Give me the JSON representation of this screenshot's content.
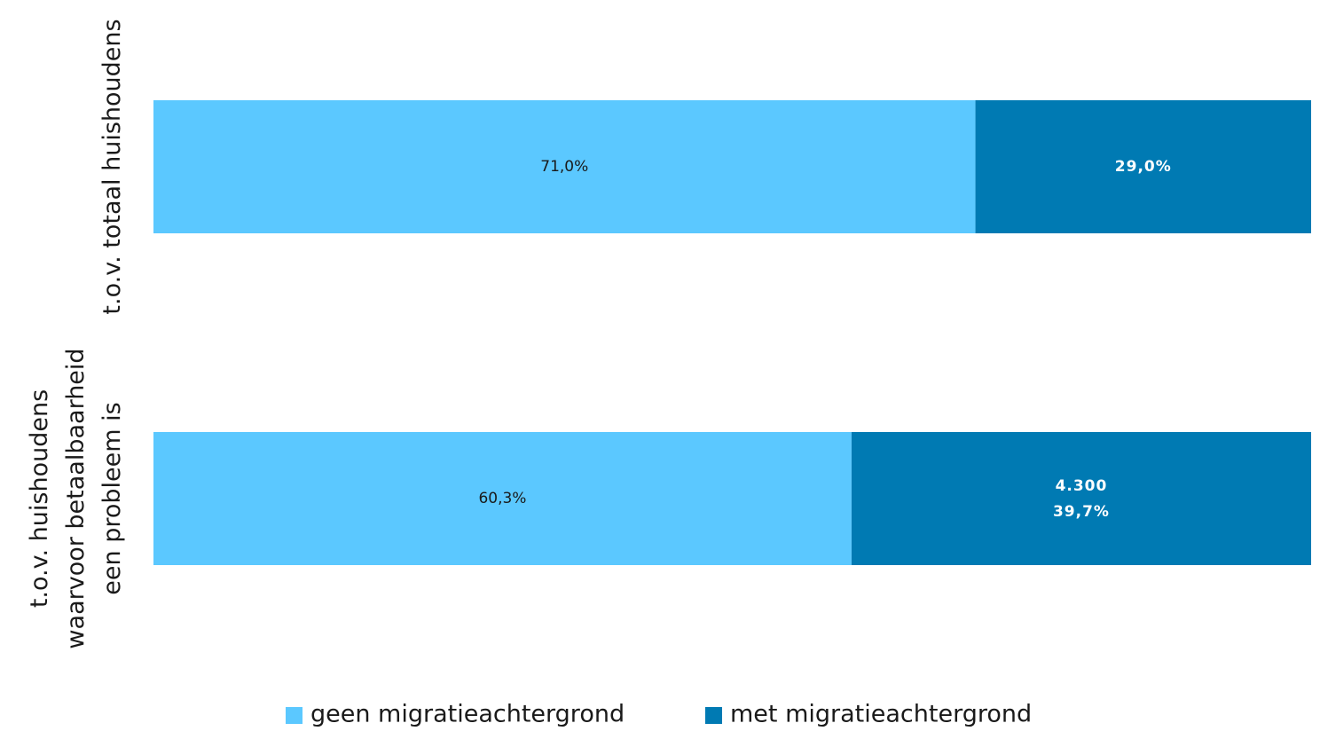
{
  "chart_data": {
    "type": "stacked-bar-horizontal",
    "categories": [
      "t.o.v. totaal huishoudens",
      "t.o.v. huishoudens\nwaarvoor betaalbaarheid\neen probleem is"
    ],
    "series": [
      {
        "name": "geen migratieachtergrond",
        "color": "#5bc8ff",
        "values": [
          71.0,
          60.3
        ],
        "value_labels": [
          "71,0%",
          "60,3%"
        ]
      },
      {
        "name": "met migratieachtergrond",
        "color": "#007ab3",
        "values": [
          29.0,
          39.7
        ],
        "value_labels": [
          "29,0%",
          "39,7%"
        ]
      }
    ],
    "annotation": "4.300",
    "xlim": [
      0,
      100
    ],
    "legend": "bottom"
  }
}
